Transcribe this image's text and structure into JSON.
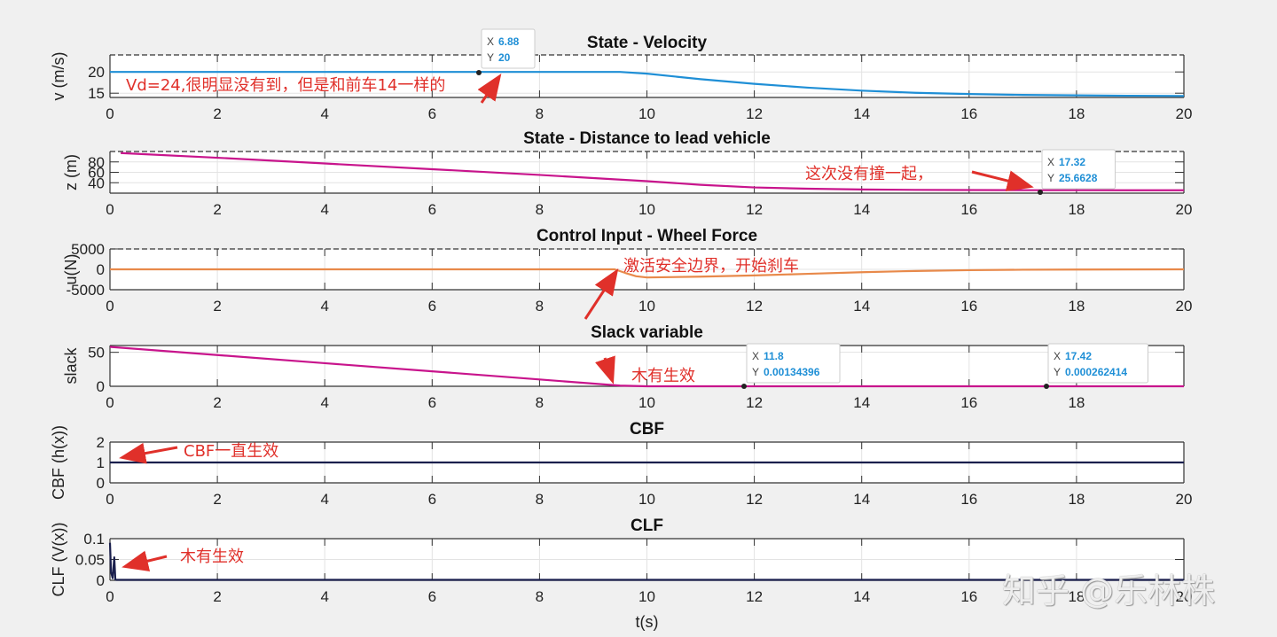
{
  "figure": {
    "xlabel": "t(s)",
    "x_ticks": [
      "0",
      "2",
      "4",
      "6",
      "8",
      "10",
      "12",
      "14",
      "16",
      "18",
      "20"
    ],
    "watermark": "知乎 @乐林株"
  },
  "chart_data": [
    {
      "type": "line",
      "title": "State - Velocity",
      "xlabel": "",
      "ylabel": "v (m/s)",
      "xlim": [
        0,
        20
      ],
      "ylim": [
        14,
        24
      ],
      "y_ticks": [
        "15",
        "20"
      ],
      "grid": true,
      "series": [
        {
          "name": "v",
          "color": "#1f8fd6",
          "x": [
            0,
            9.5,
            10,
            11,
            12,
            13,
            14,
            15,
            16,
            17,
            18,
            19,
            20
          ],
          "y": [
            20,
            20,
            19.6,
            18.3,
            17.2,
            16.3,
            15.6,
            15.1,
            14.8,
            14.6,
            14.5,
            14.4,
            14.35
          ]
        }
      ],
      "datatips": [
        {
          "x_label": "X",
          "x": "6.88",
          "y_label": "Y",
          "y": "20"
        }
      ],
      "annotations": [
        "Vd=24,很明显没有到，但是和前车14一样的"
      ]
    },
    {
      "type": "line",
      "title": "State - Distance to lead vehicle",
      "xlabel": "",
      "ylabel": "z (m)",
      "xlim": [
        0,
        20
      ],
      "ylim": [
        20,
        100
      ],
      "y_ticks": [
        "40",
        "60",
        "80"
      ],
      "grid": true,
      "series": [
        {
          "name": "z",
          "color": "#c8148c",
          "x": [
            0.2,
            2,
            4,
            6,
            8,
            9.5,
            10,
            11,
            12,
            13,
            14,
            15,
            16,
            17.32,
            18,
            20
          ],
          "y": [
            97,
            88,
            77,
            66,
            55,
            46,
            43,
            36,
            31,
            28.5,
            27,
            26.3,
            25.9,
            25.66,
            25.6,
            25.5
          ]
        }
      ],
      "datatips": [
        {
          "x_label": "X",
          "x": "17.32",
          "y_label": "Y",
          "y": "25.6628"
        }
      ],
      "annotations": [
        "这次没有撞一起，"
      ]
    },
    {
      "type": "line",
      "title": "Control Input - Wheel Force",
      "xlabel": "",
      "ylabel": "u(N)",
      "xlim": [
        0,
        20
      ],
      "ylim": [
        -5000,
        5000
      ],
      "y_ticks": [
        "-5000",
        "0",
        "5000"
      ],
      "grid": true,
      "series": [
        {
          "name": "u",
          "color": "#e8894a",
          "x": [
            0,
            9.4,
            9.6,
            9.8,
            10,
            11,
            12,
            13,
            14,
            15,
            16,
            17,
            18,
            19,
            20
          ],
          "y": [
            0,
            0,
            -900,
            -1700,
            -2000,
            -1800,
            -1500,
            -1100,
            -700,
            -400,
            -200,
            -100,
            -50,
            -20,
            0
          ]
        }
      ],
      "annotations": [
        "激活安全边界，开始刹车"
      ]
    },
    {
      "type": "line",
      "title": "Slack variable",
      "xlabel": "",
      "ylabel": "slack",
      "xlim": [
        0,
        20
      ],
      "ylim": [
        0,
        60
      ],
      "y_ticks": [
        "0",
        "50"
      ],
      "x_ticks": [
        "0",
        "2",
        "4",
        "6",
        "8",
        "10",
        "12",
        "14",
        "16",
        "18"
      ],
      "grid": true,
      "series": [
        {
          "name": "slack",
          "color": "#c8148c",
          "x": [
            0,
            2,
            4,
            6,
            8,
            9.5,
            10,
            11.8,
            17.42,
            20
          ],
          "y": [
            58,
            46,
            34,
            22,
            10,
            1,
            0,
            0.00134396,
            0.000262414,
            0
          ]
        }
      ],
      "datatips": [
        {
          "x_label": "X",
          "x": "11.8",
          "y_label": "Y",
          "y": "0.00134396"
        },
        {
          "x_label": "X",
          "x": "17.42",
          "y_label": "Y",
          "y": "0.000262414"
        }
      ],
      "annotations": [
        "木有生效"
      ]
    },
    {
      "type": "line",
      "title": "CBF",
      "xlabel": "",
      "ylabel": "CBF (h(x))",
      "xlim": [
        0,
        20
      ],
      "ylim": [
        0,
        2
      ],
      "y_ticks": [
        "0",
        "1",
        "2"
      ],
      "grid": true,
      "series": [
        {
          "name": "h(x)",
          "color": "#1a1f4d",
          "x": [
            0,
            20
          ],
          "y": [
            1,
            1
          ]
        }
      ],
      "annotations": [
        "CBF一直生效"
      ]
    },
    {
      "type": "line",
      "title": "CLF",
      "xlabel": "t(s)",
      "ylabel": "CLF (V(x))",
      "xlim": [
        0,
        20
      ],
      "ylim": [
        0,
        0.1
      ],
      "y_ticks": [
        "0",
        "0.05",
        "0.1"
      ],
      "grid": true,
      "series": [
        {
          "name": "V(x)",
          "color": "#1a1f4d",
          "x": [
            0,
            0.02,
            0.05,
            0.08,
            0.1,
            0.12,
            0.2,
            20
          ],
          "y": [
            0.09,
            0.02,
            0.005,
            0.055,
            0.002,
            0.001,
            0.001,
            0.001
          ]
        }
      ],
      "annotations": [
        "木有生效"
      ]
    }
  ]
}
